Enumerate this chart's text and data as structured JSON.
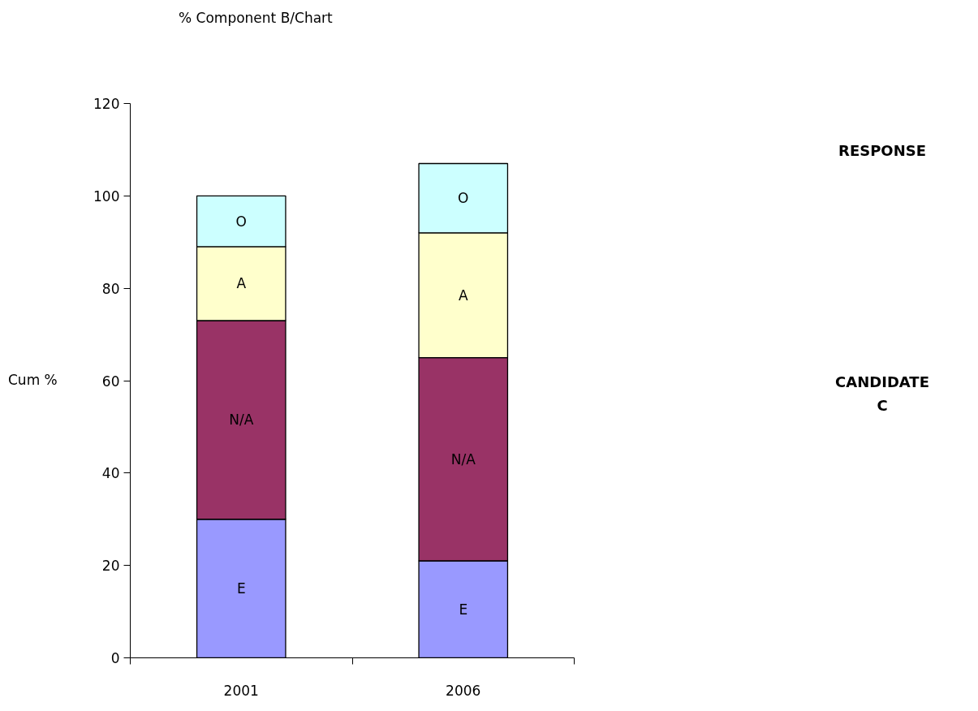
{
  "chart_data": {
    "type": "bar",
    "stacked": true,
    "title": "% Component B/Chart",
    "ylabel": "Cum %",
    "categories": [
      "2001",
      "2006"
    ],
    "series": [
      {
        "name": "E",
        "color": "#9999ff",
        "values": [
          30,
          21
        ]
      },
      {
        "name": "N/A",
        "color": "#993366",
        "values": [
          43,
          44
        ]
      },
      {
        "name": "A",
        "color": "#ffffcc",
        "values": [
          16,
          27
        ]
      },
      {
        "name": "O",
        "color": "#ccffff",
        "values": [
          11,
          15
        ]
      }
    ],
    "ylim": [
      0,
      120
    ],
    "yticks": [
      0,
      20,
      40,
      60,
      80,
      100,
      120
    ],
    "grid": false,
    "annotations": [
      "RESPONSE",
      "CANDIDATE\nC"
    ]
  }
}
